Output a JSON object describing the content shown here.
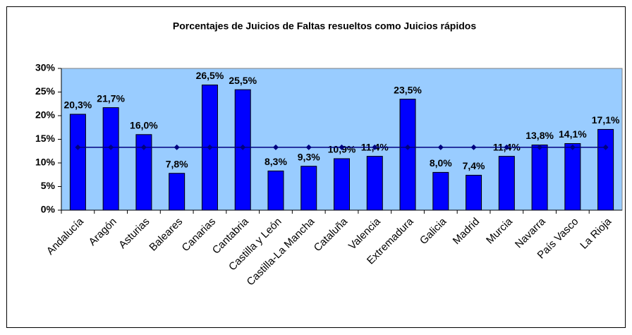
{
  "chart_data": {
    "type": "bar",
    "title": "Porcentajes de Juicios de Faltas resueltos como Juicios rápidos",
    "categories": [
      "Andalucía",
      "Aragón",
      "Asturias",
      "Baleares",
      "Canarias",
      "Cantabria",
      "Castilla y León",
      "Castilla-La Mancha",
      "Cataluña",
      "Valencia",
      "Extremadura",
      "Galicia",
      "Madrid",
      "Murcia",
      "Navarra",
      "País Vasco",
      "La Rioja"
    ],
    "series": [
      {
        "type": "bar",
        "color": "#0000ff",
        "values": [
          20.3,
          21.7,
          16.0,
          7.8,
          26.5,
          25.5,
          8.3,
          9.3,
          10.9,
          11.4,
          23.5,
          8.0,
          7.4,
          11.4,
          13.8,
          14.1,
          17.1
        ],
        "value_labels": [
          "20,3%",
          "21,7%",
          "16,0%",
          "7,8%",
          "26,5%",
          "25,5%",
          "8,3%",
          "9,3%",
          "10,9%",
          "11,4%",
          "23,5%",
          "8,0%",
          "7,4%",
          "11,4%",
          "13,8%",
          "14,1%",
          "17,1%"
        ]
      },
      {
        "type": "line",
        "color": "#000080",
        "values": [
          13.3,
          13.3,
          13.3,
          13.3,
          13.3,
          13.3,
          13.3,
          13.3,
          13.3,
          13.3,
          13.3,
          13.3,
          13.3,
          13.3,
          13.3,
          13.3,
          13.3
        ]
      }
    ],
    "ylim": [
      0,
      30
    ],
    "yticks": [
      {
        "value": 0,
        "label": "0%"
      },
      {
        "value": 5,
        "label": "5%"
      },
      {
        "value": 10,
        "label": "10%"
      },
      {
        "value": 15,
        "label": "15%"
      },
      {
        "value": 20,
        "label": "20%"
      },
      {
        "value": 25,
        "label": "25%"
      },
      {
        "value": 30,
        "label": "30%"
      }
    ],
    "plot_background": "#99ccff"
  }
}
